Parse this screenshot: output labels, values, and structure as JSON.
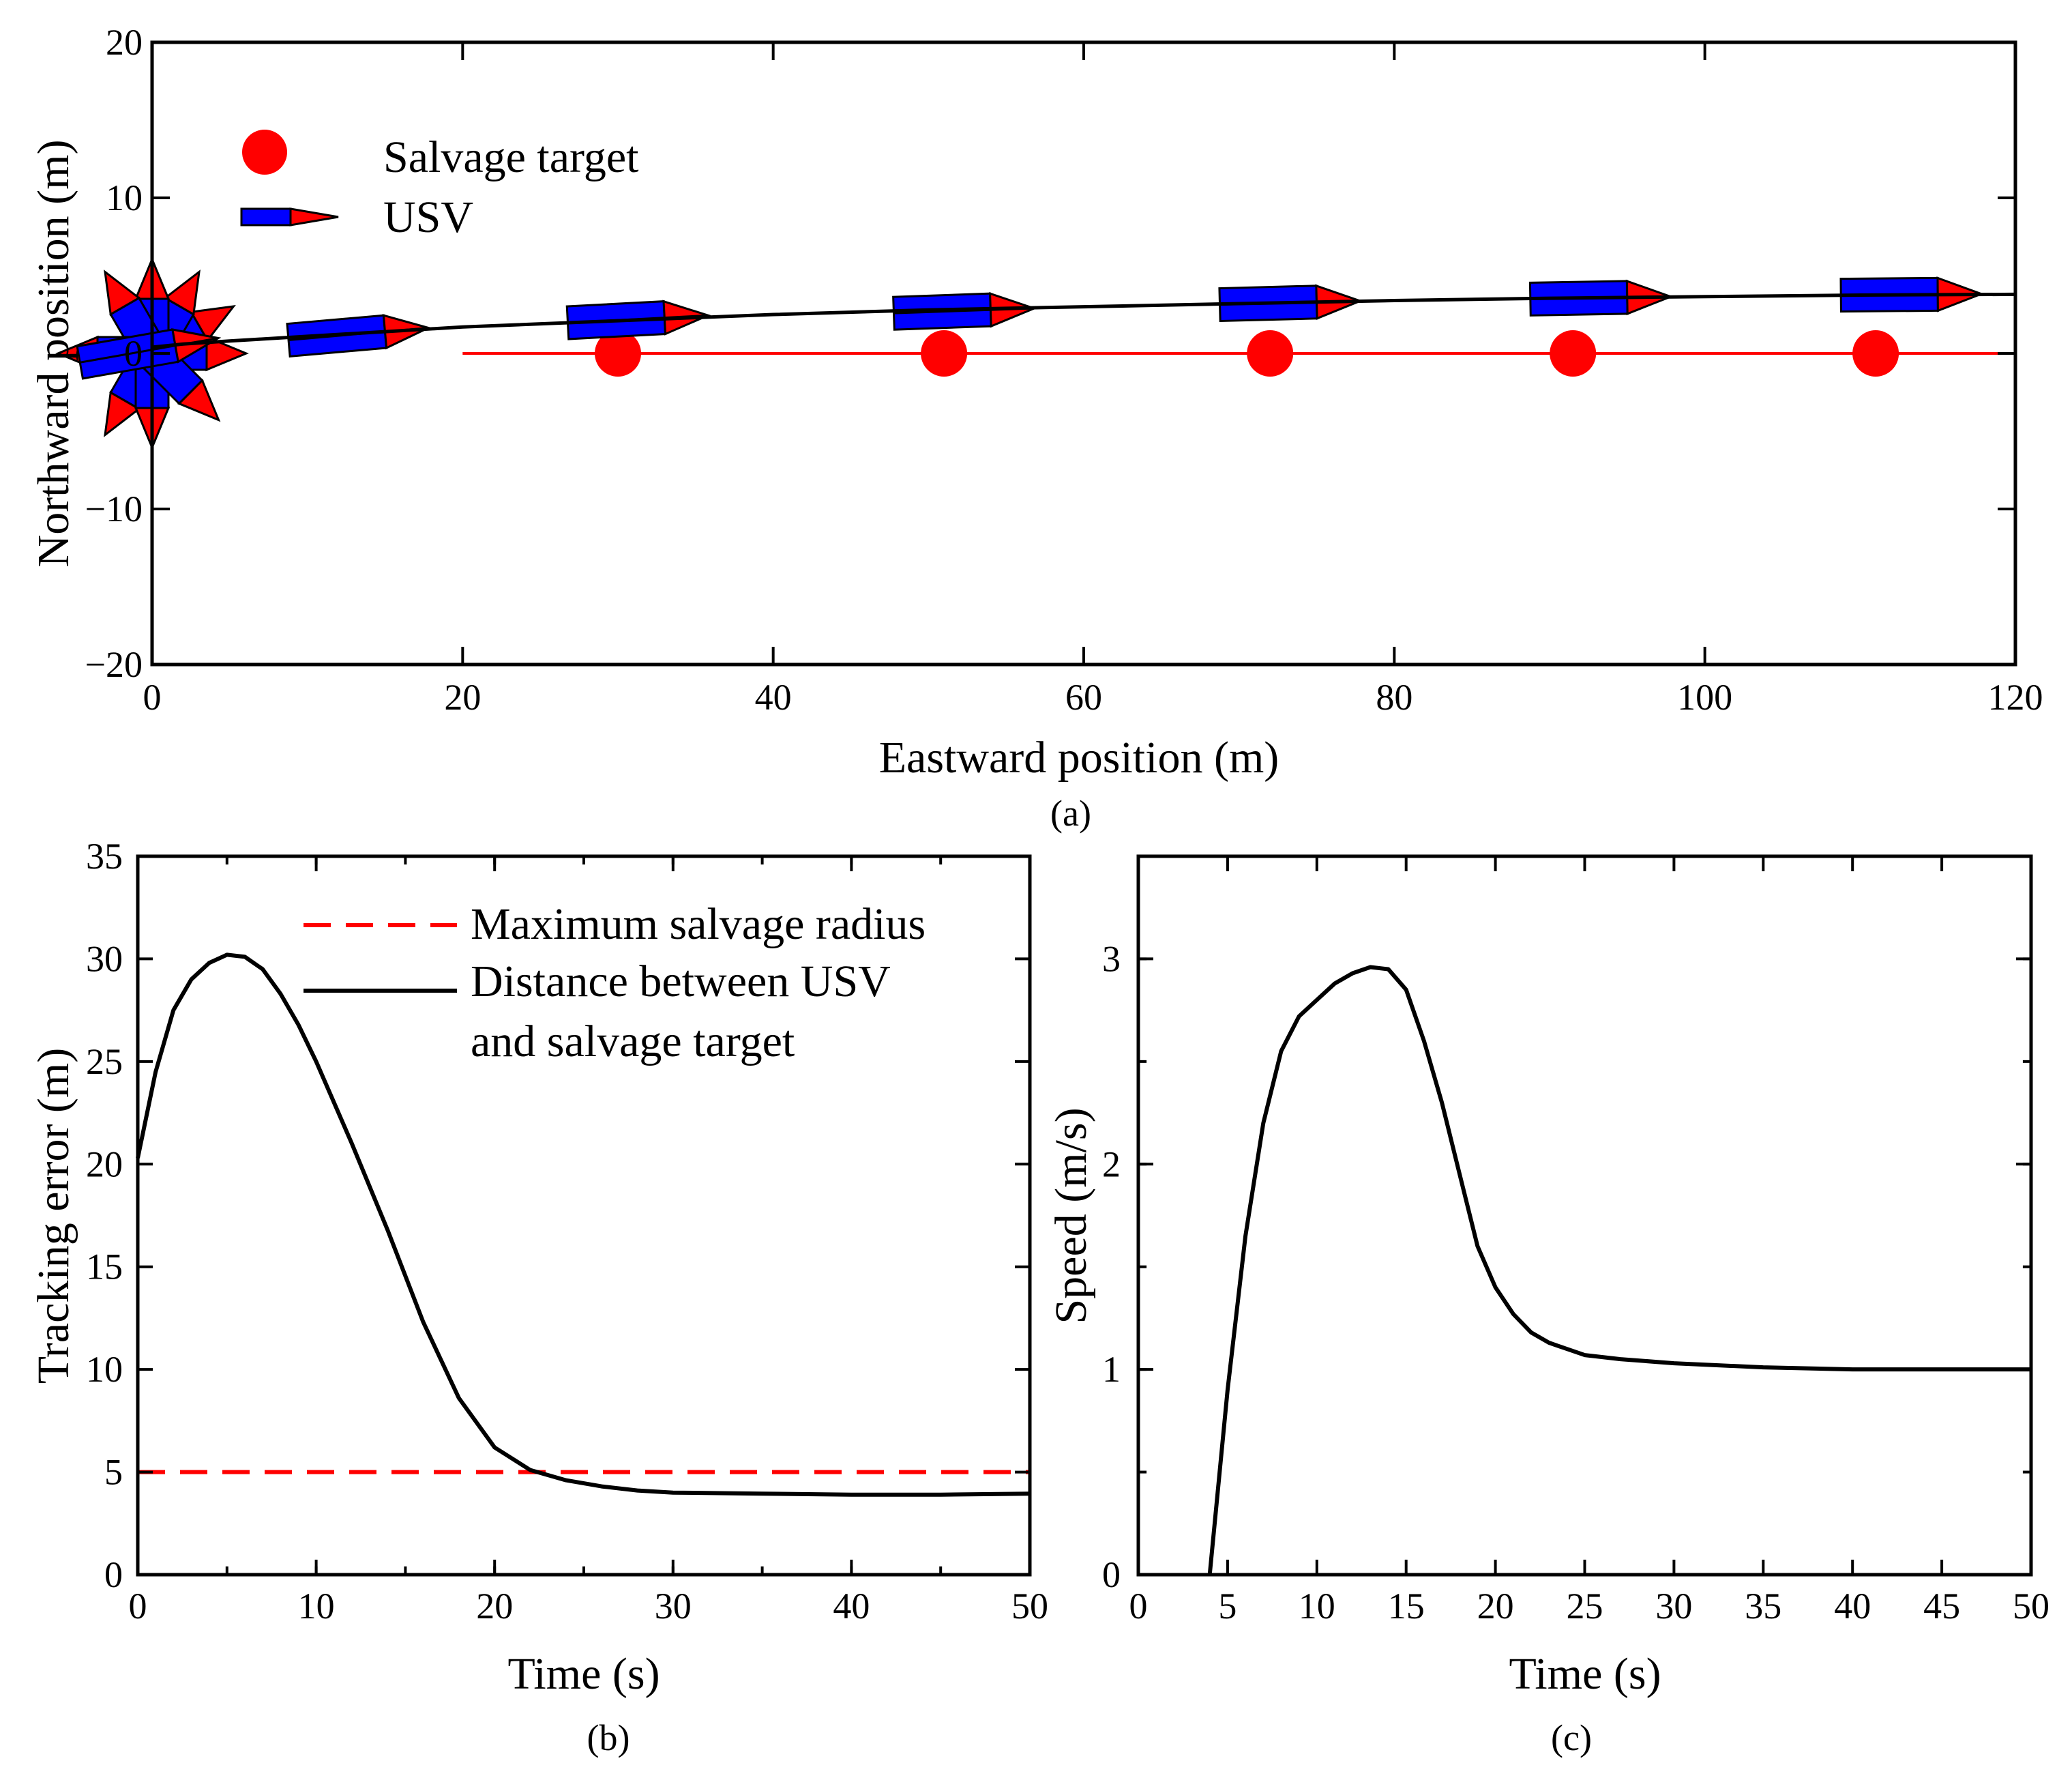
{
  "chart_data": [
    {
      "panel": "(a)",
      "type": "line",
      "xlabel": "Eastward position (m)",
      "ylabel": "Northward position (m)",
      "xlim": [
        0,
        120
      ],
      "ylim": [
        -20,
        20
      ],
      "xticks": [
        0,
        20,
        40,
        60,
        80,
        100,
        120
      ],
      "yticks": [
        -20,
        -10,
        0,
        10,
        20
      ],
      "legend": {
        "position": "top-left",
        "entries": [
          "Salvage target",
          "USV"
        ]
      },
      "series": [
        {
          "name": "USV trajectory",
          "color": "#000000",
          "x": [
            0,
            2,
            5,
            10,
            15,
            20,
            30,
            40,
            50,
            60,
            70,
            80,
            90,
            100,
            110,
            120
          ],
          "y": [
            0.4,
            0.6,
            0.8,
            1.1,
            1.4,
            1.7,
            2.1,
            2.5,
            2.8,
            3.0,
            3.2,
            3.4,
            3.55,
            3.65,
            3.75,
            3.8
          ]
        },
        {
          "name": "Target path",
          "color": "#ff0000",
          "x": [
            20,
            120
          ],
          "y": [
            0,
            0
          ]
        }
      ],
      "targets": [
        {
          "x": 30,
          "y": 0
        },
        {
          "x": 51,
          "y": 0
        },
        {
          "x": 72,
          "y": 0
        },
        {
          "x": 91.5,
          "y": 0
        },
        {
          "x": 111,
          "y": 0
        }
      ],
      "usv_poses": [
        {
          "x": 1.5,
          "y": 0.5,
          "heading_deg": 10
        },
        {
          "x": 15,
          "y": 1.4,
          "heading_deg": 5
        },
        {
          "x": 33,
          "y": 2.3,
          "heading_deg": 3
        },
        {
          "x": 54,
          "y": 2.8,
          "heading_deg": 2
        },
        {
          "x": 75,
          "y": 3.3,
          "heading_deg": 1.5
        },
        {
          "x": 95,
          "y": 3.6,
          "heading_deg": 1
        },
        {
          "x": 115,
          "y": 3.8,
          "heading_deg": 0.5
        }
      ],
      "initial_burst_headings_deg": [
        0,
        30,
        60,
        90,
        120,
        180,
        240,
        270,
        315
      ]
    },
    {
      "panel": "(b)",
      "type": "line",
      "xlabel": "Time (s)",
      "ylabel": "Tracking error (m)",
      "xlim": [
        0,
        50
      ],
      "ylim": [
        0,
        35
      ],
      "xticks": [
        0,
        10,
        20,
        30,
        40,
        50
      ],
      "yticks": [
        0,
        5,
        10,
        15,
        20,
        25,
        30,
        35
      ],
      "legend": {
        "position": "top-right",
        "entries": [
          "Maximum salvage radius",
          "Distance between USV",
          "and salvage target"
        ]
      },
      "series": [
        {
          "name": "Maximum salvage radius",
          "style": "dashed",
          "color": "#ff0000",
          "x": [
            0,
            50
          ],
          "y": [
            5,
            5
          ]
        },
        {
          "name": "Distance between USV and salvage target",
          "style": "solid",
          "color": "#000000",
          "x": [
            0,
            1,
            2,
            3,
            4,
            5,
            6,
            7,
            8,
            9,
            10,
            12,
            14,
            16,
            18,
            20,
            22,
            24,
            26,
            28,
            30,
            35,
            40,
            45,
            50
          ],
          "y": [
            20.3,
            24.5,
            27.5,
            29.0,
            29.8,
            30.2,
            30.1,
            29.5,
            28.3,
            26.8,
            25.0,
            21.0,
            16.8,
            12.3,
            8.6,
            6.2,
            5.1,
            4.6,
            4.3,
            4.1,
            4.0,
            3.95,
            3.9,
            3.9,
            3.95
          ]
        }
      ]
    },
    {
      "panel": "(c)",
      "type": "line",
      "xlabel": "Time (s)",
      "ylabel": "Speed (m/s)",
      "xlim": [
        0,
        50
      ],
      "ylim": [
        0,
        3.5
      ],
      "xticks": [
        0,
        5,
        10,
        15,
        20,
        25,
        30,
        35,
        40,
        45,
        50
      ],
      "yticks": [
        0,
        1,
        2,
        3
      ],
      "series": [
        {
          "name": "Speed",
          "style": "solid",
          "color": "#000000",
          "x": [
            4,
            5,
            6,
            7,
            8,
            9,
            10,
            11,
            12,
            13,
            14,
            15,
            16,
            17,
            18,
            19,
            20,
            21,
            22,
            23,
            24,
            25,
            27,
            30,
            35,
            40,
            45,
            50
          ],
          "y": [
            0,
            0.9,
            1.65,
            2.2,
            2.55,
            2.72,
            2.8,
            2.88,
            2.93,
            2.96,
            2.95,
            2.85,
            2.6,
            2.3,
            1.95,
            1.6,
            1.4,
            1.27,
            1.18,
            1.13,
            1.1,
            1.07,
            1.05,
            1.03,
            1.01,
            1.0,
            1.0,
            1.0
          ]
        }
      ]
    }
  ]
}
